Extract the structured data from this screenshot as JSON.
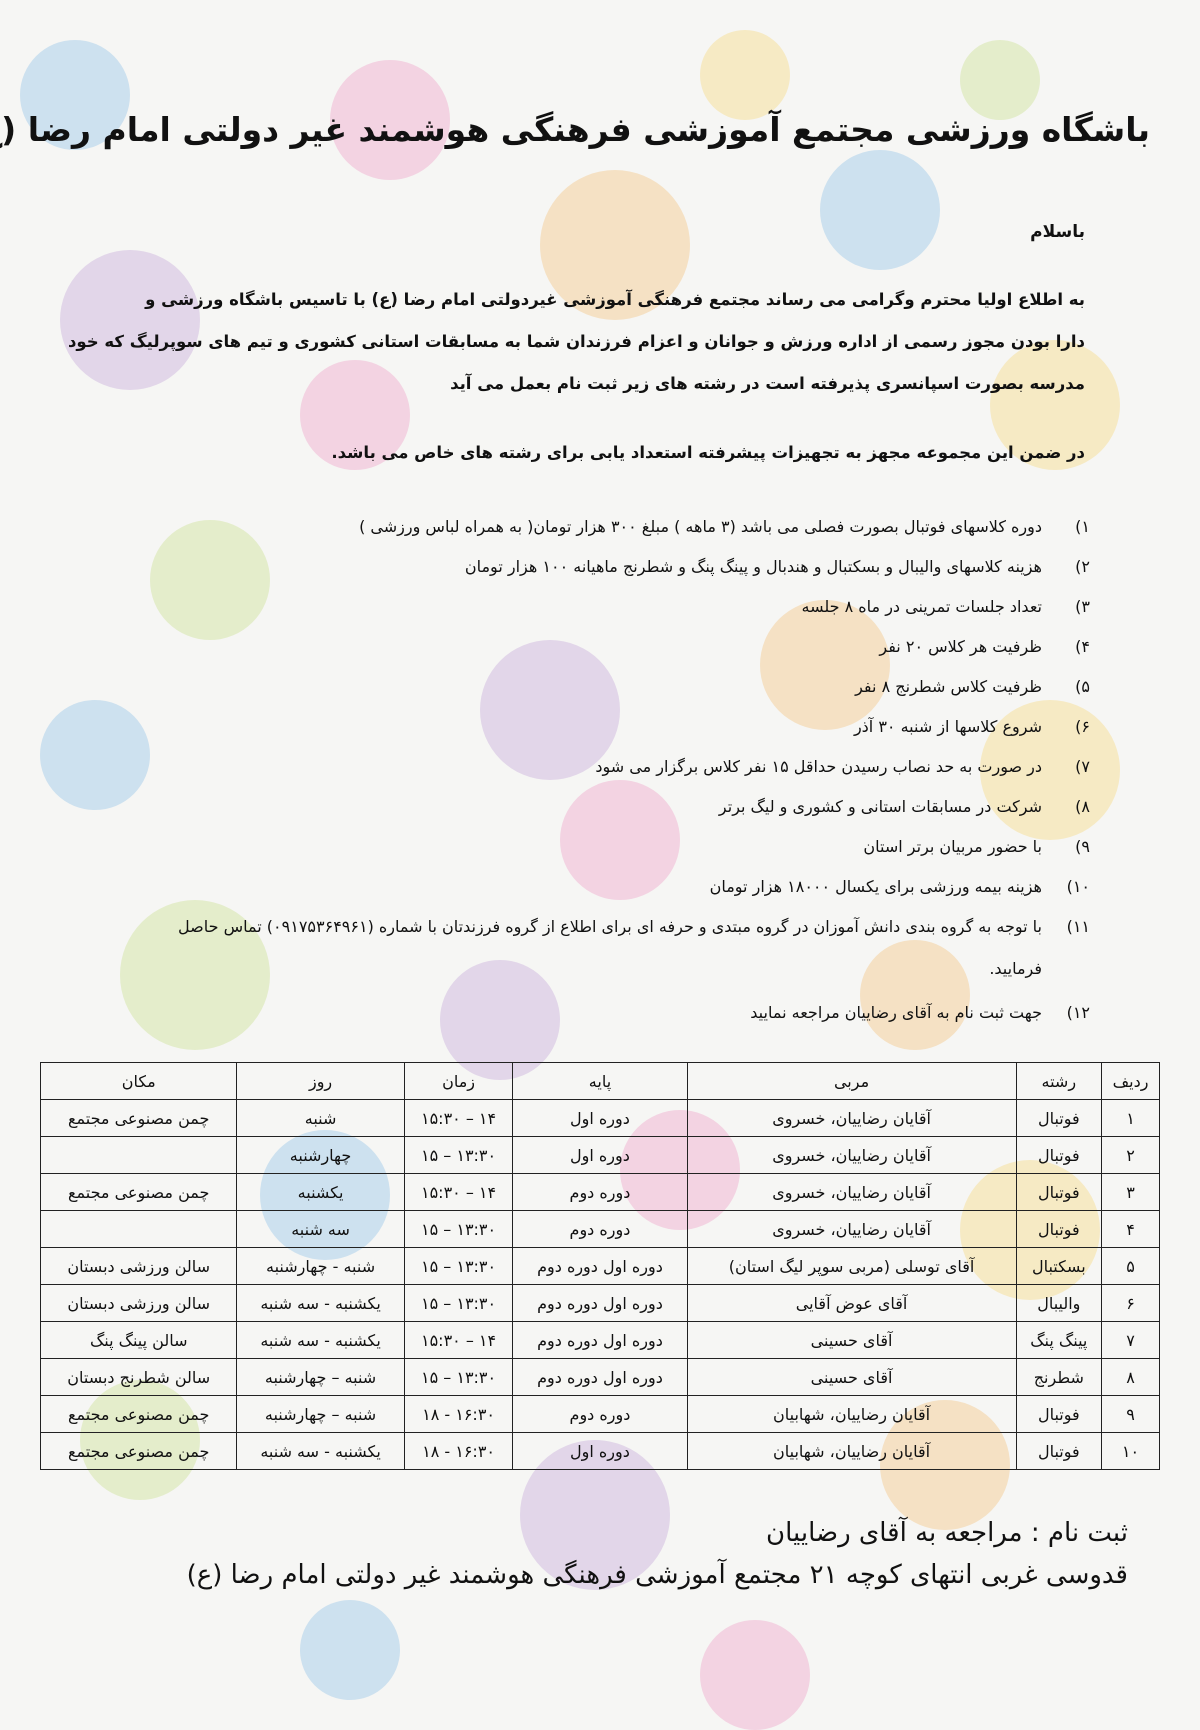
{
  "title": "باشگاه ورزشی مجتمع آموزشی فرهنگی هوشمند غیر دولتی امام رضا (ع)",
  "greeting": "باسلام",
  "paragraph": [
    "به اطلاع اولیا محترم وگرامی می رساند مجتمع فرهنگی آموزشی غیردولتی امام رضا (ع) با تاسیس باشگاه ورزشی و",
    "دارا بودن مجوز رسمی از اداره ورزش و جوانان و اعزام فرزندان شما به مسابقات استانی کشوری و تیم های سوپرلیگ که خود",
    "مدرسه بصورت اسپانسری پذیرفته است در رشته های زیر ثبت نام بعمل می آید"
  ],
  "note": "در ضمن این مجموعه مجهز به تجهیزات پیشرفته استعداد یابی برای رشته های خاص می باشد.",
  "list": [
    {
      "n": "۱)",
      "t": "دوره کلاسهای فوتبال بصورت فصلی می باشد (۳ ماهه ) مبلغ ۳۰۰ هزار تومان( به همراه لباس ورزشی )"
    },
    {
      "n": "۲)",
      "t": "هزینه کلاسهای والیبال و بسکتبال و هندبال و پینگ پنگ و شطرنج ماهیانه ۱۰۰ هزار تومان"
    },
    {
      "n": "۳)",
      "t": "تعداد جلسات تمرینی در ماه ۸ جلسه"
    },
    {
      "n": "۴)",
      "t": "ظرفیت هر کلاس ۲۰ نفر"
    },
    {
      "n": "۵)",
      "t": "ظرفیت کلاس شطرنج ۸ نفر"
    },
    {
      "n": "۶)",
      "t": "شروع کلاسها از شنبه ۳۰ آذر"
    },
    {
      "n": "۷)",
      "t": "در صورت به حد نصاب رسیدن حداقل ۱۵ نفر کلاس برگزار می شود"
    },
    {
      "n": "۸)",
      "t": "شرکت در مسابقات استانی و کشوری و لیگ برتر"
    },
    {
      "n": "۹)",
      "t": "با حضور مربیان برتر استان"
    },
    {
      "n": "۱۰)",
      "t": "هزینه بیمه ورزشی  برای یکسال ۱۸۰۰۰ هزار تومان"
    },
    {
      "n": "۱۱)",
      "t": "با توجه به گروه بندی دانش آموزان در گروه مبتدی و حرفه ای برای اطلاع از گروه فرزندتان با شماره (۰۹۱۷۵۳۶۴۹۶۱) تماس حاصل",
      "t2": "فرمایید."
    },
    {
      "n": "۱۲)",
      "t": "جهت ثبت نام به آقای رضاییان مراجعه نمایید"
    }
  ],
  "table": {
    "headers": [
      "ردیف",
      "رشته",
      "مربی",
      "پایه",
      "زمان",
      "روز",
      "مکان"
    ],
    "rows": [
      [
        "۱",
        "فوتبال",
        "آقایان رضاییان، خسروی",
        "دوره اول",
        "۱۴ – ۱۵:۳۰",
        "شنبه",
        "چمن مصنوعی مجتمع"
      ],
      [
        "۲",
        "فوتبال",
        "آقایان رضاییان، خسروی",
        "دوره اول",
        "۱۳:۳۰ – ۱۵",
        "چهارشنبه",
        ""
      ],
      [
        "۳",
        "فوتبال",
        "آقایان رضاییان، خسروی",
        "دوره دوم",
        "۱۴ – ۱۵:۳۰",
        "یکشنبه",
        "چمن مصنوعی مجتمع"
      ],
      [
        "۴",
        "فوتبال",
        "آقایان رضاییان، خسروی",
        "دوره دوم",
        "۱۳:۳۰ – ۱۵",
        "سه شنبه",
        ""
      ],
      [
        "۵",
        "بسکتبال",
        "آقای توسلی (مربی سوپر لیگ استان)",
        "دوره اول دوره دوم",
        "۱۳:۳۰ – ۱۵",
        "شنبه - چهارشنبه",
        "سالن ورزشی دبستان"
      ],
      [
        "۶",
        "والیبال",
        "آقای عوض آقایی",
        "دوره اول دوره دوم",
        "۱۳:۳۰ – ۱۵",
        "یکشنبه - سه شنبه",
        "سالن ورزشی دبستان"
      ],
      [
        "۷",
        "پینگ پنگ",
        "آقای حسینی",
        "دوره اول دوره دوم",
        "۱۴ – ۱۵:۳۰",
        "یکشنبه - سه شنبه",
        "سالن پینگ پنگ"
      ],
      [
        "۸",
        "شطرنج",
        "آقای حسینی",
        "دوره اول دوره دوم",
        "۱۳:۳۰ – ۱۵",
        "شنبه – چهارشنبه",
        "سالن شطرنج دبستان"
      ],
      [
        "۹",
        "فوتبال",
        "آقایان رضاییان، شهابیان",
        "دوره دوم",
        "۱۶:۳۰ - ۱۸",
        "شنبه – چهارشنبه",
        "چمن مصنوعی مجتمع"
      ],
      [
        "۱۰",
        "فوتبال",
        "آقایان رضاییان، شهابیان",
        "دوره اول",
        "۱۶:۳۰ - ۱۸",
        "یکشنبه - سه شنبه",
        "چمن مصنوعی مجتمع"
      ]
    ]
  },
  "footer": [
    "ثبت نام : مراجعه به آقای رضاییان",
    "قدوسی غربی انتهای کوچه ۲۱ مجتمع آموزشی فرهنگی هوشمند غیر دولتی امام رضا (ع)"
  ],
  "colors": {
    "pastel_blue": "#9cc8e8",
    "pastel_pink": "#f0a8cc",
    "pastel_yellow": "#f6dc8a",
    "pastel_green": "#cfe39a",
    "pastel_purple": "#c9b0dc",
    "pastel_orange": "#f5c88a"
  }
}
